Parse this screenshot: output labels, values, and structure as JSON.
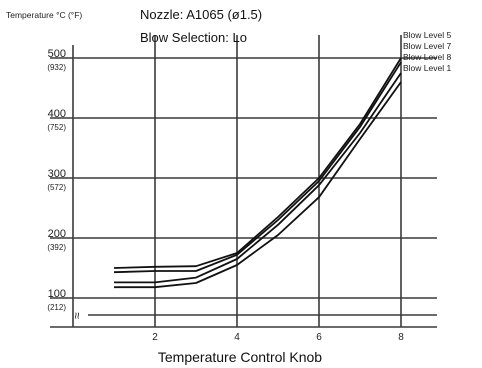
{
  "chart_data": {
    "type": "line",
    "title_lines": [
      "Nozzle: A1065 (ø1.5)",
      "Blow Selection: Lo"
    ],
    "xlabel": "Temperature Control Knob",
    "ylabel": "Temperature °C (°F)",
    "xlim": [
      0,
      8
    ],
    "ylim": [
      50,
      520
    ],
    "x_ticks": [
      {
        "value": 2,
        "label": "2"
      },
      {
        "value": 4,
        "label": "4"
      },
      {
        "value": 6,
        "label": "6"
      },
      {
        "value": 8,
        "label": "8"
      }
    ],
    "y_ticks": [
      {
        "value": 100,
        "label": "100",
        "sublabel": "(212)"
      },
      {
        "value": 200,
        "label": "200",
        "sublabel": "(392)"
      },
      {
        "value": 300,
        "label": "300",
        "sublabel": "(572)"
      },
      {
        "value": 400,
        "label": "400",
        "sublabel": "(752)"
      },
      {
        "value": 500,
        "label": "500",
        "sublabel": "(932)"
      }
    ],
    "grid": true,
    "legend_position": "top-right, labels at line ends",
    "series": [
      {
        "name": "Blow Level 5",
        "x": [
          1,
          2,
          3,
          4,
          5,
          6,
          7,
          8
        ],
        "y": [
          150,
          152,
          153,
          175,
          235,
          300,
          390,
          500
        ]
      },
      {
        "name": "Blow Level 7",
        "x": [
          1,
          2,
          3,
          4,
          5,
          6,
          7,
          8
        ],
        "y": [
          143,
          145,
          145,
          172,
          230,
          295,
          385,
          493
        ]
      },
      {
        "name": "Blow Level 8",
        "x": [
          1,
          2,
          3,
          4,
          5,
          6,
          7,
          8
        ],
        "y": [
          126,
          126,
          134,
          165,
          222,
          288,
          375,
          475
        ]
      },
      {
        "name": "Blow Level 1",
        "x": [
          1,
          2,
          3,
          4,
          5,
          6,
          7,
          8
        ],
        "y": [
          118,
          118,
          125,
          155,
          205,
          268,
          365,
          460
        ]
      }
    ]
  },
  "break_mark": "≈"
}
